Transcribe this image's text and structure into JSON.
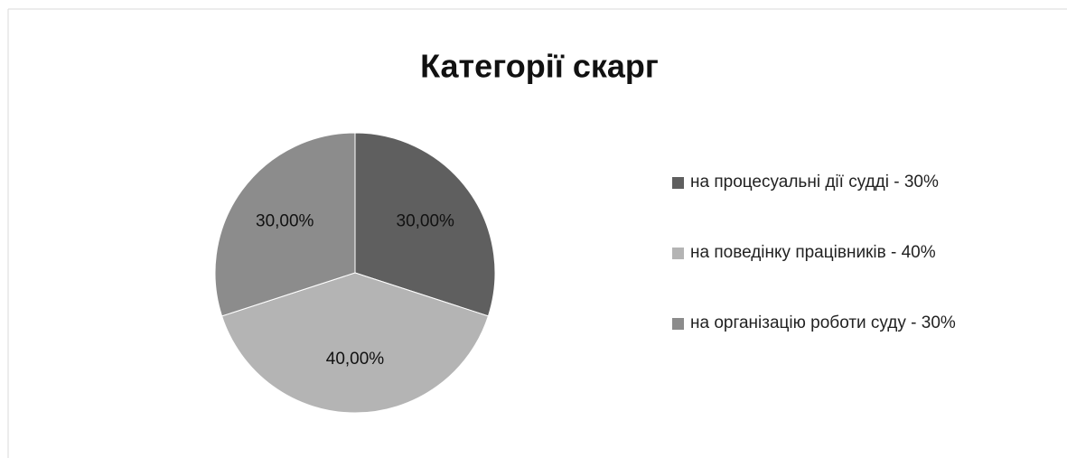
{
  "chart_data": {
    "type": "pie",
    "title": "Категорії скарг",
    "categories": [
      "на процесуальні дії судді - 30%",
      "на поведінку працівників - 40%",
      "на організацію роботи суду - 30%"
    ],
    "values": [
      30,
      40,
      30
    ],
    "value_labels": [
      "30,00%",
      "40,00%",
      "30,00%"
    ],
    "colors": [
      "#5f5f5f",
      "#b4b4b4",
      "#8c8c8c"
    ],
    "legend": "right"
  }
}
